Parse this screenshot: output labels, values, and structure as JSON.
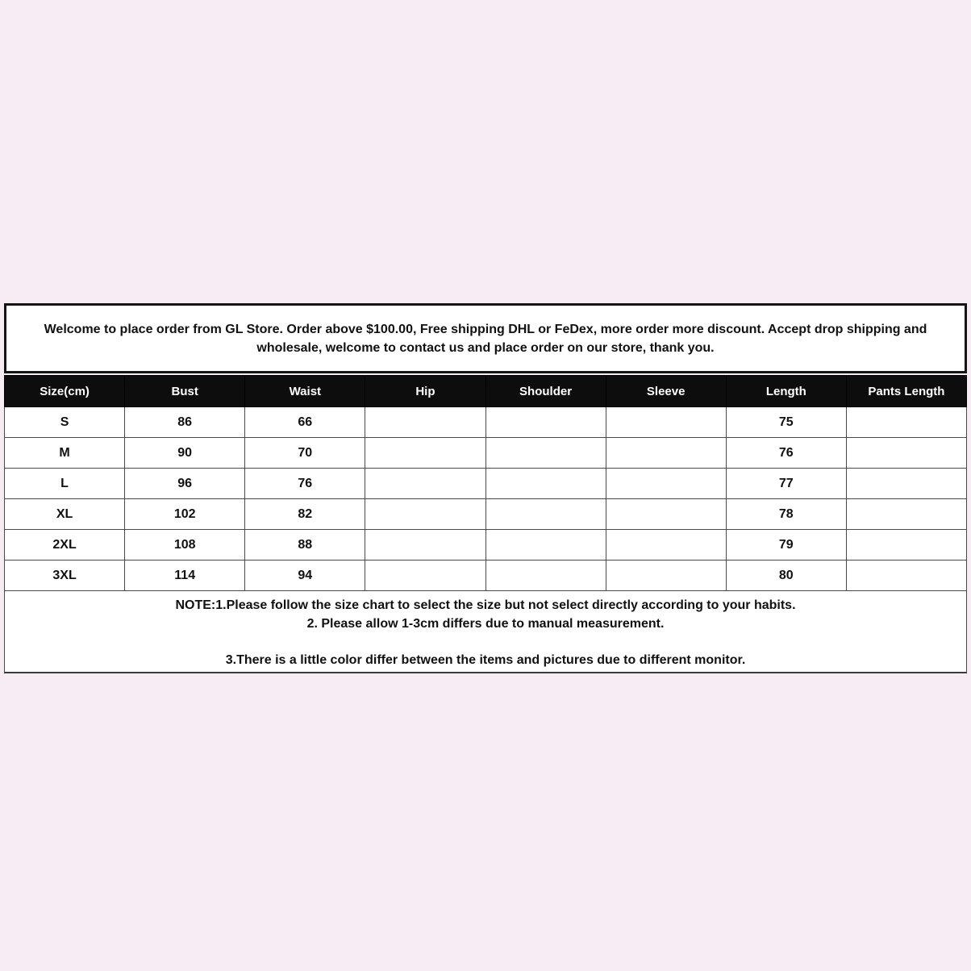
{
  "page": {
    "background_color": "#f8ecf4"
  },
  "welcome": {
    "text": "Welcome to place order from GL Store. Order above $100.00, Free shipping DHL or FeDex, more order more discount. Accept drop shipping and wholesale, welcome to contact us and place order on our store, thank you."
  },
  "size_chart": {
    "header_bg": "#0d0d0d",
    "header_text_color": "#ffffff",
    "columns": [
      "Size(cm)",
      "Bust",
      "Waist",
      "Hip",
      "Shoulder",
      "Sleeve",
      "Length",
      "Pants Length"
    ],
    "rows": [
      {
        "cells": [
          "S",
          "86",
          "66",
          "",
          "",
          "",
          "75",
          ""
        ]
      },
      {
        "cells": [
          "M",
          "90",
          "70",
          "",
          "",
          "",
          "76",
          ""
        ]
      },
      {
        "cells": [
          "L",
          "96",
          "76",
          "",
          "",
          "",
          "77",
          ""
        ]
      },
      {
        "cells": [
          "XL",
          "102",
          "82",
          "",
          "",
          "",
          "78",
          ""
        ]
      },
      {
        "cells": [
          "2XL",
          "108",
          "88",
          "",
          "",
          "",
          "79",
          ""
        ]
      },
      {
        "cells": [
          "3XL",
          "114",
          "94",
          "",
          "",
          "",
          "80",
          ""
        ]
      }
    ]
  },
  "notes": {
    "line1": "NOTE:1.Please follow the size chart to select the size but not select directly according to your habits.",
    "line2": "2. Please allow 1-3cm differs due to manual measurement.",
    "line3": "3.There is a little color differ between the items and pictures due to different monitor."
  }
}
